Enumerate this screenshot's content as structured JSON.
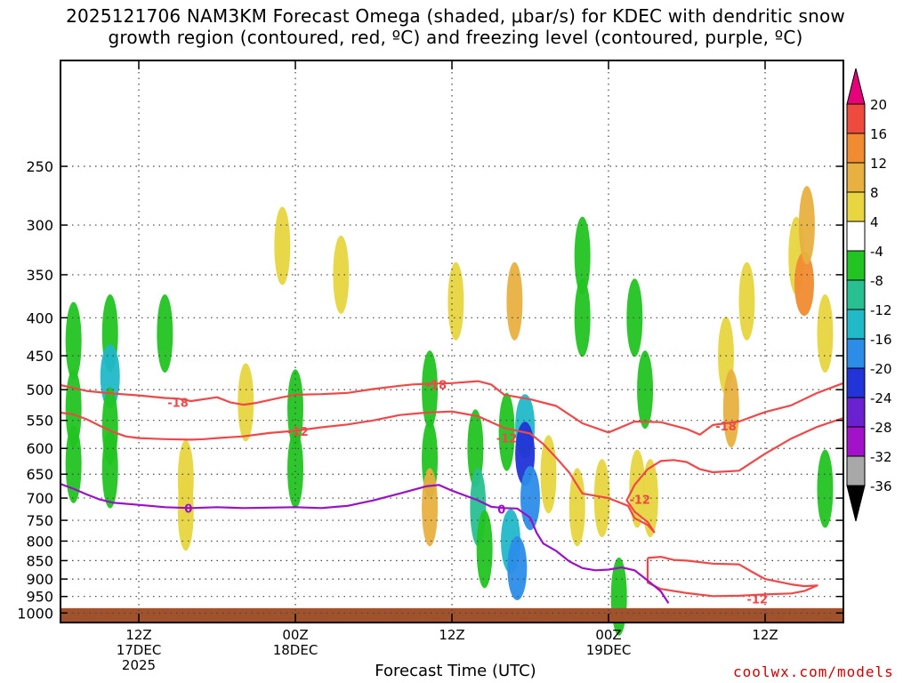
{
  "title": {
    "line1": "2025121706 NAM3KM Forecast Omega (shaded, μbar/s) for KDEC with dendritic snow",
    "line2": "growth region (contoured, red, ºC) and freezing level (contoured, purple, ºC)"
  },
  "credit": "coolwx.com/models",
  "chart_data": {
    "type": "heatmap",
    "title": "2025121706 NAM3KM Forecast Omega (shaded, μbar/s) for KDEC with dendritic snow growth region (contoured, red, ºC) and freezing level (contoured, purple, ºC)",
    "xlabel": "Forecast Time (UTC)",
    "ylabel": "",
    "x_unit": "forecast hour since 2025-12-17 06Z",
    "xlim": [
      0,
      60
    ],
    "ylim": [
      1030,
      180
    ],
    "y_scale": "log-pressure",
    "grid": true,
    "y_ticks": [
      250,
      300,
      350,
      400,
      450,
      500,
      550,
      600,
      650,
      700,
      750,
      800,
      850,
      900,
      950,
      1000
    ],
    "x_ticks": [
      {
        "hour": 6,
        "label1": "12Z",
        "label2": "17DEC",
        "label3": "2025"
      },
      {
        "hour": 18,
        "label1": "00Z",
        "label2": "18DEC",
        "label3": ""
      },
      {
        "hour": 30,
        "label1": "12Z",
        "label2": "",
        "label3": ""
      },
      {
        "hour": 42,
        "label1": "00Z",
        "label2": "19DEC",
        "label3": ""
      },
      {
        "hour": 54,
        "label1": "12Z",
        "label2": "",
        "label3": ""
      }
    ],
    "colorbar": {
      "labels": [
        "20",
        "16",
        "12",
        "8",
        "4",
        "-4",
        "-8",
        "-12",
        "-16",
        "-20",
        "-24",
        "-28",
        "-32",
        "-36"
      ],
      "bins": [
        {
          "from": 20,
          "to": 24,
          "color": "#e6007a"
        },
        {
          "from": 16,
          "to": 20,
          "color": "#ee4b3e"
        },
        {
          "from": 12,
          "to": 16,
          "color": "#f08b32"
        },
        {
          "from": 8,
          "to": 12,
          "color": "#e8b040"
        },
        {
          "from": 4,
          "to": 8,
          "color": "#e8d540"
        },
        {
          "from": -4,
          "to": 4,
          "color": "#ffffff"
        },
        {
          "from": -8,
          "to": -4,
          "color": "#22c422"
        },
        {
          "from": -12,
          "to": -8,
          "color": "#28c090"
        },
        {
          "from": -16,
          "to": -12,
          "color": "#21b8c8"
        },
        {
          "from": -20,
          "to": -16,
          "color": "#2b8de8"
        },
        {
          "from": -24,
          "to": -20,
          "color": "#2233d8"
        },
        {
          "from": -28,
          "to": -24,
          "color": "#6a22d0"
        },
        {
          "from": -32,
          "to": -28,
          "color": "#a112c8"
        },
        {
          "from": -36,
          "to": -32,
          "color": "#a8a8a8"
        },
        {
          "from": -40,
          "to": -36,
          "color": "#000000"
        }
      ]
    },
    "omega_cells": [
      {
        "hour": 1.0,
        "p": 430,
        "value": -6
      },
      {
        "hour": 1.0,
        "p": 530,
        "value": -6
      },
      {
        "hour": 1.0,
        "p": 630,
        "value": -6
      },
      {
        "hour": 3.8,
        "p": 420,
        "value": -6
      },
      {
        "hour": 3.8,
        "p": 480,
        "value": -13
      },
      {
        "hour": 3.8,
        "p": 560,
        "value": -6
      },
      {
        "hour": 3.8,
        "p": 640,
        "value": -6
      },
      {
        "hour": 8.0,
        "p": 420,
        "value": -6
      },
      {
        "hour": 9.6,
        "p": 660,
        "value": 5
      },
      {
        "hour": 9.6,
        "p": 730,
        "value": 5
      },
      {
        "hour": 18.0,
        "p": 530,
        "value": -6
      },
      {
        "hour": 18.0,
        "p": 640,
        "value": -6
      },
      {
        "hour": 17.0,
        "p": 320,
        "value": 5
      },
      {
        "hour": 21.5,
        "p": 350,
        "value": 5
      },
      {
        "hour": 14.2,
        "p": 520,
        "value": 5
      },
      {
        "hour": 28.3,
        "p": 500,
        "value": -6
      },
      {
        "hour": 28.3,
        "p": 620,
        "value": -6
      },
      {
        "hour": 28.3,
        "p": 720,
        "value": 10
      },
      {
        "hour": 30.3,
        "p": 380,
        "value": 5
      },
      {
        "hour": 31.8,
        "p": 600,
        "value": -6
      },
      {
        "hour": 32.0,
        "p": 720,
        "value": -10
      },
      {
        "hour": 32.5,
        "p": 820,
        "value": -6
      },
      {
        "hour": 34.2,
        "p": 570,
        "value": -6
      },
      {
        "hour": 34.5,
        "p": 800,
        "value": -14
      },
      {
        "hour": 35.0,
        "p": 870,
        "value": -18
      },
      {
        "hour": 35.6,
        "p": 560,
        "value": -14
      },
      {
        "hour": 35.6,
        "p": 610,
        "value": -22
      },
      {
        "hour": 36.0,
        "p": 700,
        "value": -18
      },
      {
        "hour": 34.8,
        "p": 380,
        "value": 10
      },
      {
        "hour": 37.4,
        "p": 650,
        "value": 5
      },
      {
        "hour": 39.6,
        "p": 720,
        "value": 5
      },
      {
        "hour": 40.0,
        "p": 330,
        "value": -6
      },
      {
        "hour": 40.0,
        "p": 400,
        "value": -6
      },
      {
        "hour": 44.0,
        "p": 400,
        "value": -6
      },
      {
        "hour": 44.2,
        "p": 680,
        "value": 5
      },
      {
        "hour": 45.2,
        "p": 700,
        "value": 5
      },
      {
        "hour": 41.5,
        "p": 700,
        "value": 5
      },
      {
        "hour": 44.8,
        "p": 500,
        "value": -6
      },
      {
        "hour": 51.0,
        "p": 450,
        "value": 5
      },
      {
        "hour": 51.4,
        "p": 530,
        "value": 10
      },
      {
        "hour": 52.6,
        "p": 380,
        "value": 5
      },
      {
        "hour": 56.4,
        "p": 330,
        "value": 5
      },
      {
        "hour": 57.0,
        "p": 360,
        "value": 14
      },
      {
        "hour": 57.2,
        "p": 300,
        "value": 10
      },
      {
        "hour": 58.6,
        "p": 420,
        "value": 5
      },
      {
        "hour": 58.6,
        "p": 680,
        "value": -6
      },
      {
        "hour": 42.8,
        "p": 950,
        "value": -6
      }
    ],
    "contours": [
      {
        "name": "-18",
        "color": "#f04848",
        "label_points": [
          [
            9.0,
            520
          ],
          [
            28.8,
            492
          ],
          [
            51.0,
            560
          ]
        ],
        "points": [
          [
            0,
            493
          ],
          [
            2,
            502
          ],
          [
            4,
            506
          ],
          [
            6,
            509
          ],
          [
            8,
            513
          ],
          [
            9,
            514
          ],
          [
            10,
            518
          ],
          [
            12,
            512
          ],
          [
            13,
            520
          ],
          [
            14,
            524
          ],
          [
            15,
            521
          ],
          [
            17,
            512
          ],
          [
            18,
            508
          ],
          [
            20,
            507
          ],
          [
            22,
            505
          ],
          [
            24,
            499
          ],
          [
            26,
            494
          ],
          [
            27,
            492
          ],
          [
            28,
            491
          ],
          [
            30,
            490
          ],
          [
            32,
            487
          ],
          [
            33,
            492
          ],
          [
            34,
            508
          ],
          [
            36,
            515
          ],
          [
            38,
            526
          ],
          [
            40,
            555
          ],
          [
            42,
            571
          ],
          [
            44,
            552
          ],
          [
            46,
            553
          ],
          [
            48,
            565
          ],
          [
            49,
            575
          ],
          [
            50,
            558
          ],
          [
            52,
            552
          ],
          [
            54,
            536
          ],
          [
            56,
            525
          ],
          [
            58,
            505
          ],
          [
            60,
            490
          ]
        ]
      },
      {
        "name": "-12",
        "color": "#f04848",
        "label_points": [
          [
            18.2,
            569
          ],
          [
            34.2,
            581
          ],
          [
            44.4,
            703
          ],
          [
            53.4,
            958
          ]
        ],
        "points": [
          [
            0,
            537
          ],
          [
            1,
            540
          ],
          [
            2,
            548
          ],
          [
            3,
            559
          ],
          [
            4,
            570
          ],
          [
            5,
            578
          ],
          [
            6,
            581
          ],
          [
            8,
            583
          ],
          [
            10,
            584
          ],
          [
            11,
            583
          ],
          [
            12,
            581
          ],
          [
            14,
            578
          ],
          [
            16,
            572
          ],
          [
            18,
            568
          ],
          [
            20,
            562
          ],
          [
            22,
            557
          ],
          [
            24,
            550
          ],
          [
            26,
            541
          ],
          [
            28,
            537
          ],
          [
            30,
            535
          ],
          [
            32,
            543
          ],
          [
            34,
            563
          ],
          [
            36,
            573
          ],
          [
            37,
            592
          ],
          [
            38,
            618
          ],
          [
            39,
            647
          ],
          [
            40,
            690
          ],
          [
            42,
            700
          ],
          [
            43.5,
            717
          ],
          [
            44,
            745
          ],
          [
            45,
            761
          ],
          [
            45.5,
            778
          ],
          [
            45,
            754
          ],
          [
            44,
            730
          ],
          [
            43.4,
            705
          ],
          [
            44,
            672
          ],
          [
            45,
            640
          ],
          [
            46,
            624
          ],
          [
            47,
            622
          ],
          [
            48,
            626
          ],
          [
            49,
            640
          ],
          [
            50,
            646
          ],
          [
            52,
            643
          ],
          [
            54,
            610
          ],
          [
            56,
            582
          ],
          [
            58,
            561
          ],
          [
            60,
            546
          ]
        ]
      },
      {
        "name": "-12",
        "color": "#f04848",
        "label_points": [],
        "points": [
          [
            45,
            843
          ],
          [
            46,
            840
          ],
          [
            47,
            848
          ],
          [
            48,
            850
          ],
          [
            50,
            858
          ],
          [
            52,
            860
          ],
          [
            53,
            880
          ],
          [
            54,
            900
          ],
          [
            56,
            915
          ],
          [
            57,
            920
          ],
          [
            58,
            918
          ],
          [
            57,
            934
          ],
          [
            56,
            941
          ],
          [
            54,
            944
          ],
          [
            52,
            948
          ],
          [
            50,
            949
          ],
          [
            48,
            940
          ],
          [
            46,
            928
          ],
          [
            45,
            910
          ],
          [
            45,
            843
          ]
        ]
      },
      {
        "name": "0",
        "color": "#9a10c8",
        "label_points": [
          [
            9.8,
            722
          ],
          [
            33.8,
            724
          ]
        ],
        "points": [
          [
            0,
            670
          ],
          [
            1,
            680
          ],
          [
            2,
            692
          ],
          [
            3,
            703
          ],
          [
            4,
            710
          ],
          [
            6,
            715
          ],
          [
            8,
            720
          ],
          [
            10,
            722
          ],
          [
            12,
            720
          ],
          [
            14,
            722
          ],
          [
            16,
            721
          ],
          [
            18,
            720
          ],
          [
            20,
            722
          ],
          [
            22,
            717
          ],
          [
            24,
            705
          ],
          [
            26,
            690
          ],
          [
            28,
            675
          ],
          [
            29,
            672
          ],
          [
            30,
            684
          ],
          [
            32,
            705
          ],
          [
            33,
            719
          ],
          [
            34,
            722
          ],
          [
            35,
            723
          ],
          [
            36,
            744
          ],
          [
            36.5,
            780
          ],
          [
            37,
            806
          ],
          [
            38,
            825
          ],
          [
            39,
            852
          ],
          [
            40,
            870
          ],
          [
            41,
            876
          ],
          [
            42,
            874
          ],
          [
            43,
            868
          ],
          [
            44,
            876
          ],
          [
            45,
            904
          ],
          [
            46,
            935
          ],
          [
            46.6,
            970
          ]
        ]
      }
    ],
    "ground_pressure": 985,
    "ground_color": "#a0522d"
  }
}
